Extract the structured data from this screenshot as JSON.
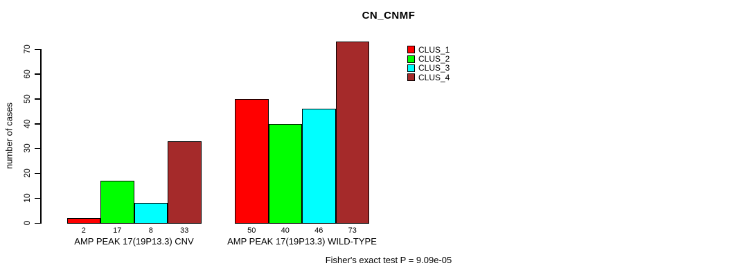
{
  "page": {
    "background_color": "#ffffff",
    "text_color": "#000000"
  },
  "chart_data": {
    "type": "bar",
    "title": "CN_CNMF",
    "ylabel": "number of cases",
    "xlabel": "",
    "ylim": [
      0,
      70
    ],
    "yticks": [
      0,
      10,
      20,
      30,
      40,
      50,
      60,
      70
    ],
    "grid": false,
    "categories": [
      "AMP PEAK 17(19P13.3) CNV",
      "AMP PEAK 17(19P13.3) WILD-TYPE"
    ],
    "series": [
      {
        "name": "CLUS_1",
        "color": "#ff0000",
        "values": [
          2,
          50
        ]
      },
      {
        "name": "CLUS_2",
        "color": "#00ff00",
        "values": [
          17,
          40
        ]
      },
      {
        "name": "CLUS_3",
        "color": "#00ffff",
        "values": [
          8,
          46
        ]
      },
      {
        "name": "CLUS_4",
        "color": "#a52a2a",
        "values": [
          33,
          73
        ]
      }
    ],
    "value_labels_shown": true,
    "legend": {
      "position": "top-center",
      "entries": [
        "CLUS_1",
        "CLUS_2",
        "CLUS_3",
        "CLUS_4"
      ]
    },
    "annotation": "Fisher's exact test P = 9.09e-05"
  }
}
